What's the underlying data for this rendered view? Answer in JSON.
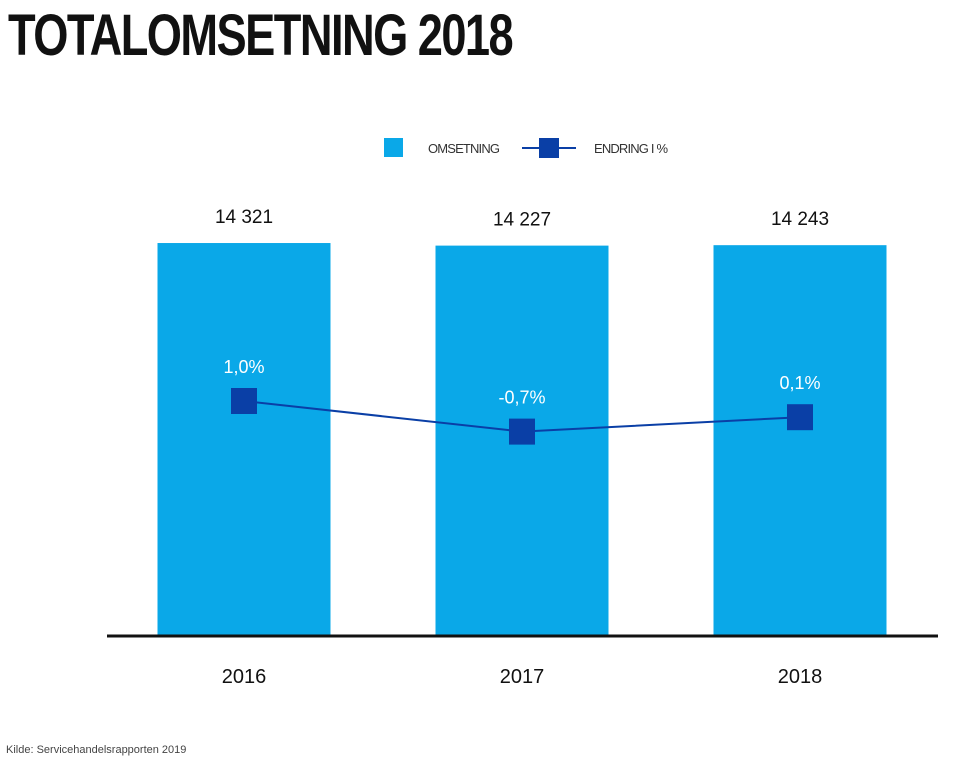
{
  "chart_data": {
    "type": "bar",
    "title": "TOTALOMSETNING 2018",
    "categories": [
      "2016",
      "2017",
      "2018"
    ],
    "series": [
      {
        "name": "OMSETNING",
        "type": "bar",
        "values": [
          14321,
          14227,
          14243
        ],
        "labels": [
          "14 321",
          "14 227",
          "14 243"
        ],
        "color": "#0aa8e8"
      },
      {
        "name": "ENDRING I %",
        "type": "line",
        "values": [
          1.0,
          -0.7,
          0.1
        ],
        "labels": [
          "1,0%",
          "-0,7%",
          "0,1%"
        ],
        "color": "#0a3fa6"
      }
    ],
    "legend": "top-center",
    "grid": false,
    "source": "Kilde: Servicehandelsrapporten 2019"
  }
}
